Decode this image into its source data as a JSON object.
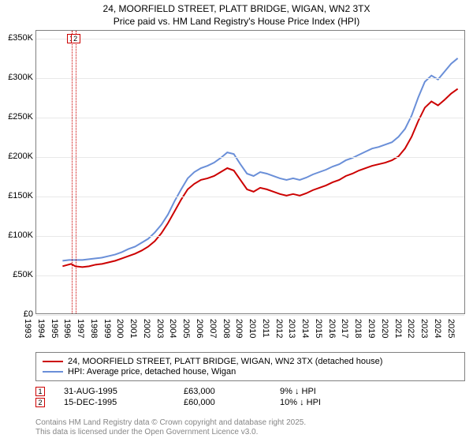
{
  "title_line1": "24, MOORFIELD STREET, PLATT BRIDGE, WIGAN, WN2 3TX",
  "title_line2": "Price paid vs. HM Land Registry's House Price Index (HPI)",
  "chart": {
    "type": "line",
    "background_color": "#ffffff",
    "grid_color": "#e8e8e8",
    "axis_color": "#808080",
    "label_fontsize": 11,
    "title_fontsize": 12,
    "x_min": 1993,
    "x_max": 2025.5,
    "x_ticks": [
      1993,
      1994,
      1995,
      1996,
      1997,
      1998,
      1999,
      2000,
      2001,
      2002,
      2003,
      2004,
      2005,
      2006,
      2007,
      2008,
      2009,
      2010,
      2011,
      2012,
      2013,
      2014,
      2015,
      2016,
      2017,
      2018,
      2019,
      2020,
      2021,
      2022,
      2023,
      2024,
      2025
    ],
    "y_min": 0,
    "y_max": 360000,
    "y_ticks": [
      0,
      50000,
      100000,
      150000,
      200000,
      250000,
      300000,
      350000
    ],
    "y_tick_labels": [
      "£0",
      "£50K",
      "£100K",
      "£150K",
      "£200K",
      "£250K",
      "£300K",
      "£350K"
    ],
    "series": [
      {
        "name": "24, MOORFIELD STREET, PLATT BRIDGE, WIGAN, WN2 3TX (detached house)",
        "color": "#cc0000",
        "width": 2,
        "data": [
          [
            1995.0,
            60000
          ],
          [
            1995.66,
            63000
          ],
          [
            1995.96,
            60000
          ],
          [
            1996.5,
            59000
          ],
          [
            1997.0,
            60000
          ],
          [
            1997.5,
            62000
          ],
          [
            1998.0,
            63000
          ],
          [
            1998.5,
            65000
          ],
          [
            1999.0,
            67000
          ],
          [
            1999.5,
            70000
          ],
          [
            2000.0,
            73000
          ],
          [
            2000.5,
            76000
          ],
          [
            2001.0,
            80000
          ],
          [
            2001.5,
            85000
          ],
          [
            2002.0,
            92000
          ],
          [
            2002.5,
            102000
          ],
          [
            2003.0,
            115000
          ],
          [
            2003.5,
            130000
          ],
          [
            2004.0,
            145000
          ],
          [
            2004.5,
            158000
          ],
          [
            2005.0,
            165000
          ],
          [
            2005.5,
            170000
          ],
          [
            2006.0,
            172000
          ],
          [
            2006.5,
            175000
          ],
          [
            2007.0,
            180000
          ],
          [
            2007.5,
            185000
          ],
          [
            2008.0,
            182000
          ],
          [
            2008.5,
            170000
          ],
          [
            2009.0,
            158000
          ],
          [
            2009.5,
            155000
          ],
          [
            2010.0,
            160000
          ],
          [
            2010.5,
            158000
          ],
          [
            2011.0,
            155000
          ],
          [
            2011.5,
            152000
          ],
          [
            2012.0,
            150000
          ],
          [
            2012.5,
            152000
          ],
          [
            2013.0,
            150000
          ],
          [
            2013.5,
            153000
          ],
          [
            2014.0,
            157000
          ],
          [
            2014.5,
            160000
          ],
          [
            2015.0,
            163000
          ],
          [
            2015.5,
            167000
          ],
          [
            2016.0,
            170000
          ],
          [
            2016.5,
            175000
          ],
          [
            2017.0,
            178000
          ],
          [
            2017.5,
            182000
          ],
          [
            2018.0,
            185000
          ],
          [
            2018.5,
            188000
          ],
          [
            2019.0,
            190000
          ],
          [
            2019.5,
            192000
          ],
          [
            2020.0,
            195000
          ],
          [
            2020.5,
            200000
          ],
          [
            2021.0,
            210000
          ],
          [
            2021.5,
            225000
          ],
          [
            2022.0,
            245000
          ],
          [
            2022.5,
            262000
          ],
          [
            2023.0,
            270000
          ],
          [
            2023.5,
            265000
          ],
          [
            2024.0,
            272000
          ],
          [
            2024.5,
            280000
          ],
          [
            2025.0,
            286000
          ]
        ]
      },
      {
        "name": "HPI: Average price, detached house, Wigan",
        "color": "#6a8fd8",
        "width": 2,
        "data": [
          [
            1995.0,
            67000
          ],
          [
            1995.5,
            68000
          ],
          [
            1996.0,
            68000
          ],
          [
            1996.5,
            68000
          ],
          [
            1997.0,
            69000
          ],
          [
            1997.5,
            70000
          ],
          [
            1998.0,
            71000
          ],
          [
            1998.5,
            73000
          ],
          [
            1999.0,
            75000
          ],
          [
            1999.5,
            78000
          ],
          [
            2000.0,
            82000
          ],
          [
            2000.5,
            85000
          ],
          [
            2001.0,
            90000
          ],
          [
            2001.5,
            95000
          ],
          [
            2002.0,
            103000
          ],
          [
            2002.5,
            113000
          ],
          [
            2003.0,
            126000
          ],
          [
            2003.5,
            143000
          ],
          [
            2004.0,
            158000
          ],
          [
            2004.5,
            172000
          ],
          [
            2005.0,
            180000
          ],
          [
            2005.5,
            185000
          ],
          [
            2006.0,
            188000
          ],
          [
            2006.5,
            192000
          ],
          [
            2007.0,
            198000
          ],
          [
            2007.5,
            205000
          ],
          [
            2008.0,
            203000
          ],
          [
            2008.5,
            190000
          ],
          [
            2009.0,
            178000
          ],
          [
            2009.5,
            175000
          ],
          [
            2010.0,
            180000
          ],
          [
            2010.5,
            178000
          ],
          [
            2011.0,
            175000
          ],
          [
            2011.5,
            172000
          ],
          [
            2012.0,
            170000
          ],
          [
            2012.5,
            172000
          ],
          [
            2013.0,
            170000
          ],
          [
            2013.5,
            173000
          ],
          [
            2014.0,
            177000
          ],
          [
            2014.5,
            180000
          ],
          [
            2015.0,
            183000
          ],
          [
            2015.5,
            187000
          ],
          [
            2016.0,
            190000
          ],
          [
            2016.5,
            195000
          ],
          [
            2017.0,
            198000
          ],
          [
            2017.5,
            202000
          ],
          [
            2018.0,
            206000
          ],
          [
            2018.5,
            210000
          ],
          [
            2019.0,
            212000
          ],
          [
            2019.5,
            215000
          ],
          [
            2020.0,
            218000
          ],
          [
            2020.5,
            225000
          ],
          [
            2021.0,
            235000
          ],
          [
            2021.5,
            252000
          ],
          [
            2022.0,
            275000
          ],
          [
            2022.5,
            295000
          ],
          [
            2023.0,
            303000
          ],
          [
            2023.5,
            298000
          ],
          [
            2024.0,
            308000
          ],
          [
            2024.5,
            318000
          ],
          [
            2025.0,
            325000
          ]
        ]
      }
    ],
    "sale_markers": [
      {
        "n": "1",
        "year": 1995.66,
        "value": 63000,
        "color": "#cc0000"
      },
      {
        "n": "2",
        "year": 1995.96,
        "value": 60000,
        "color": "#cc0000"
      }
    ],
    "sale_verticals": [
      {
        "year": 1995.66,
        "color": "#cc0000"
      },
      {
        "year": 1995.96,
        "color": "#cc0000"
      }
    ]
  },
  "legend": {
    "rows": [
      {
        "color": "#cc0000",
        "label": "24, MOORFIELD STREET, PLATT BRIDGE, WIGAN, WN2 3TX (detached house)"
      },
      {
        "color": "#6a8fd8",
        "label": "HPI: Average price, detached house, Wigan"
      }
    ]
  },
  "sales": [
    {
      "n": "1",
      "color": "#cc0000",
      "date": "31-AUG-1995",
      "price": "£63,000",
      "delta": "9% ↓ HPI"
    },
    {
      "n": "2",
      "color": "#cc0000",
      "date": "15-DEC-1995",
      "price": "£60,000",
      "delta": "10% ↓ HPI"
    }
  ],
  "footer": {
    "line1": "Contains HM Land Registry data © Crown copyright and database right 2025.",
    "line2": "This data is licensed under the Open Government Licence v3.0."
  }
}
